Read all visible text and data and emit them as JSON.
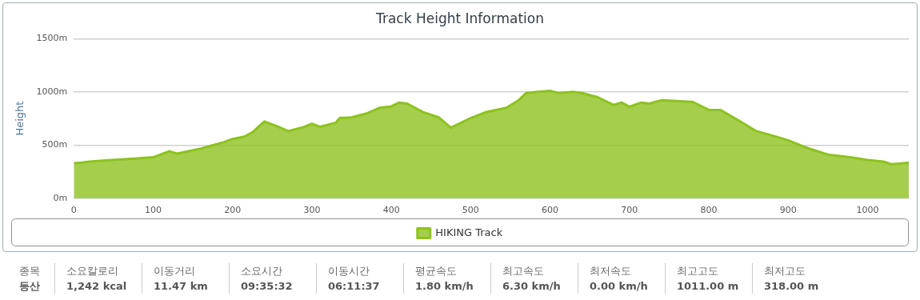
{
  "chart_data": {
    "type": "area",
    "title": "Track Height Information",
    "ylabel": "Height",
    "legend": "bottom",
    "grid": "y",
    "marker": "none",
    "line_style": "solid",
    "xlim": [
      0,
      1052
    ],
    "xticks": [
      0,
      100,
      200,
      300,
      400,
      500,
      600,
      700,
      800,
      900,
      1000
    ],
    "ylim": [
      0,
      1500
    ],
    "yticks": [
      {
        "value": 0,
        "label": "0m"
      },
      {
        "value": 500,
        "label": "500m"
      },
      {
        "value": 1000,
        "label": "1000m"
      },
      {
        "value": 1500,
        "label": "1500m"
      }
    ],
    "series": [
      {
        "name": "HIKING Track",
        "color": "#8dc21f",
        "x": [
          0,
          10,
          20,
          40,
          60,
          80,
          100,
          120,
          130,
          160,
          190,
          200,
          215,
          225,
          240,
          255,
          270,
          290,
          300,
          310,
          330,
          335,
          350,
          370,
          385,
          400,
          410,
          420,
          440,
          460,
          475,
          500,
          520,
          545,
          560,
          570,
          585,
          600,
          610,
          630,
          640,
          660,
          680,
          690,
          700,
          715,
          725,
          740,
          760,
          780,
          800,
          815,
          840,
          860,
          880,
          900,
          920,
          950,
          980,
          1000,
          1020,
          1030,
          1040,
          1052
        ],
        "values": [
          330,
          335,
          345,
          355,
          365,
          375,
          385,
          442,
          420,
          467,
          530,
          557,
          580,
          620,
          722,
          680,
          631,
          670,
          700,
          672,
          710,
          754,
          760,
          800,
          850,
          864,
          900,
          890,
          810,
          760,
          664,
          754,
          811,
          850,
          920,
          990,
          1000,
          1011,
          990,
          1000,
          990,
          950,
          877,
          900,
          861,
          900,
          890,
          921,
          915,
          905,
          830,
          830,
          720,
          631,
          590,
          545,
          484,
          410,
          385,
          360,
          345,
          320,
          325,
          336
        ]
      }
    ],
    "annotations": [
      "종목",
      "등산",
      "소요칼로리",
      "1,242 kcal",
      "이동거리",
      "11.47 km",
      "소요시간",
      "09:35:32",
      "이동시간",
      "06:11:37",
      "평균속도",
      "1.80 km/h",
      "최고속도",
      "6.30 km/h",
      "최저속도",
      "0.00 km/h",
      "최고고도",
      "1011.00 m",
      "최저고도",
      "318.00 m"
    ]
  }
}
